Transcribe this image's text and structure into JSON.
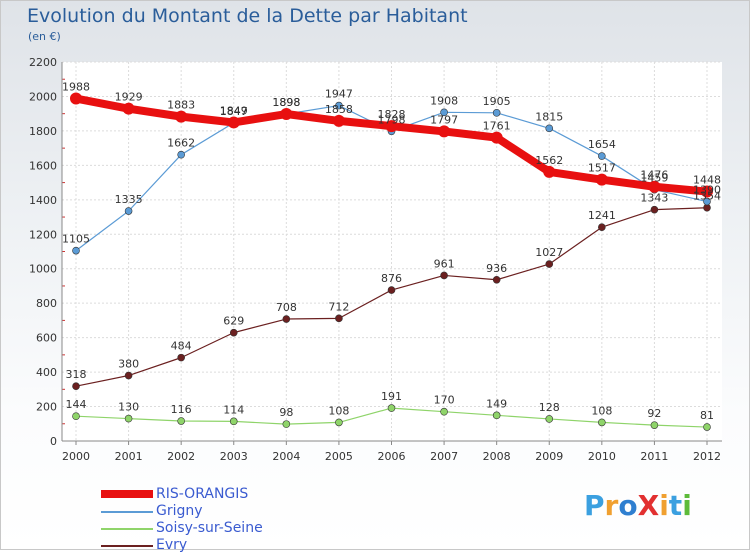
{
  "title": "Evolution du Montant de la Dette par Habitant",
  "subtitle": "(en €)",
  "logo": {
    "text": "ProXiti",
    "colors": [
      "#3ba0e0",
      "#f0a030",
      "#2f7fd0",
      "#e23030",
      "#f0a030",
      "#3ba0e0",
      "#5dbb3a"
    ]
  },
  "chart_data": {
    "type": "line",
    "title": "Evolution du Montant de la Dette par Habitant",
    "subtitle": "(en €)",
    "x": [
      "2000",
      "2001",
      "2002",
      "2003",
      "2004",
      "2005",
      "2006",
      "2007",
      "2008",
      "2009",
      "2010",
      "2011",
      "2012"
    ],
    "ylim": [
      0,
      2200
    ],
    "yticks": [
      0,
      200,
      400,
      600,
      800,
      1000,
      1200,
      1400,
      1600,
      1800,
      2000,
      2200
    ],
    "grid": true,
    "legend": "bottom-left",
    "series": [
      {
        "name": "RIS-ORANGIS",
        "color": "#e81010",
        "width": 8,
        "marker": 6,
        "values": [
          1988,
          1929,
          1883,
          1849,
          1898,
          1858,
          1828,
          1797,
          1761,
          1562,
          1517,
          1476,
          1448
        ],
        "labels": [
          "1988",
          "1929",
          "1883",
          "1849",
          "1898",
          "1858",
          "1828",
          "1797",
          "1761",
          "1562",
          "1517",
          "1476",
          "1448"
        ]
      },
      {
        "name": "Grigny",
        "color": "#5b9bd5",
        "width": 1.2,
        "marker": 3.5,
        "values": [
          1105,
          1335,
          1662,
          1847,
          1898,
          1947,
          1798,
          1908,
          1905,
          1815,
          1654,
          1459,
          1390
        ],
        "labels": [
          "1105",
          "1335",
          "1662",
          "1847",
          "1898",
          "1947",
          "1798",
          "1908",
          "1905",
          "1815",
          "1654",
          "1459",
          "1390"
        ]
      },
      {
        "name": "Soisy-sur-Seine",
        "color": "#8fd46a",
        "width": 1.2,
        "marker": 3.5,
        "values": [
          144,
          130,
          116,
          114,
          98,
          108,
          191,
          170,
          149,
          128,
          108,
          92,
          81
        ],
        "labels": [
          "144",
          "130",
          "116",
          "114",
          "98",
          "108",
          "191",
          "170",
          "149",
          "128",
          "108",
          "92",
          "81"
        ]
      },
      {
        "name": "Evry",
        "color": "#6b2020",
        "width": 1.2,
        "marker": 3.5,
        "values": [
          318,
          380,
          484,
          629,
          708,
          712,
          876,
          961,
          936,
          1027,
          1241,
          1343,
          1354
        ],
        "labels": [
          "318",
          "380",
          "484",
          "629",
          "708",
          "712",
          "876",
          "961",
          "936",
          "1027",
          "1241",
          "1343",
          "1354"
        ]
      }
    ]
  }
}
